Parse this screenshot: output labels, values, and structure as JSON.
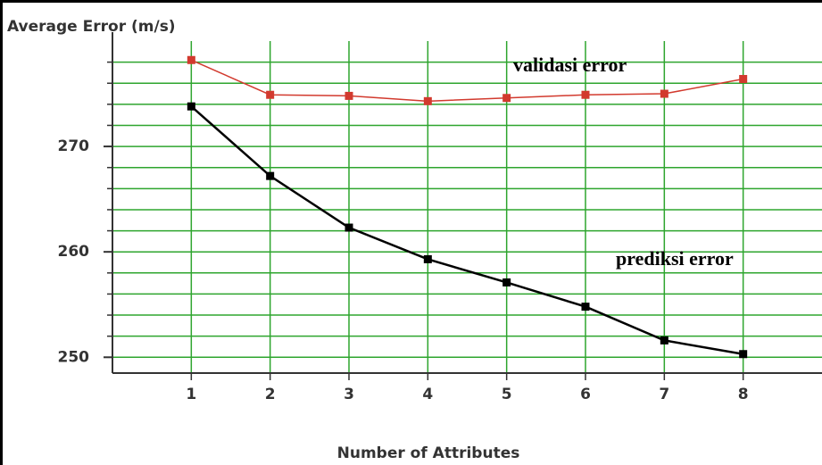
{
  "chart_data": {
    "type": "line",
    "title": "Average Error (m/s)",
    "x_label": "Number of Attributes",
    "x": [
      1,
      2,
      3,
      4,
      5,
      6,
      7,
      8
    ],
    "series": [
      {
        "name": "validasi error",
        "color": "#d23a2e",
        "values": [
          278.2,
          274.9,
          274.8,
          274.3,
          274.6,
          274.9,
          275.0,
          276.4
        ]
      },
      {
        "name": "prediksi error",
        "color": "#000000",
        "values": [
          273.8,
          267.2,
          262.3,
          259.3,
          257.1,
          254.8,
          251.6,
          250.3
        ]
      }
    ],
    "xlim": [
      0,
      9
    ],
    "xticks": [
      1,
      2,
      3,
      4,
      5,
      6,
      7,
      8
    ],
    "ylim": [
      248.5,
      280
    ],
    "yticks": [
      250,
      260,
      270
    ],
    "minor_yticks": [
      250,
      252,
      254,
      256,
      258,
      260,
      262,
      264,
      266,
      268,
      270,
      272,
      274,
      276,
      278
    ],
    "grid": true,
    "grid_color": "#2ea52e"
  }
}
